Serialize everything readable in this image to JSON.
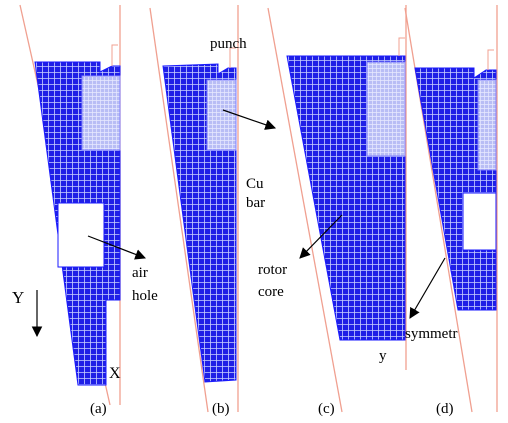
{
  "panels": [
    {
      "label": "(a)"
    },
    {
      "label": "(b)"
    },
    {
      "label": "(c)"
    },
    {
      "label": "(d)"
    }
  ],
  "annotations": {
    "punch": "punch",
    "cu_bar": [
      "Cu",
      "bar"
    ],
    "air_hole": [
      "air",
      "hole"
    ],
    "rotor_core": [
      "rotor",
      "core"
    ],
    "symmetry": "symmetr"
  },
  "axes": {
    "Y": "Y",
    "X": "X",
    "y": "y"
  }
}
